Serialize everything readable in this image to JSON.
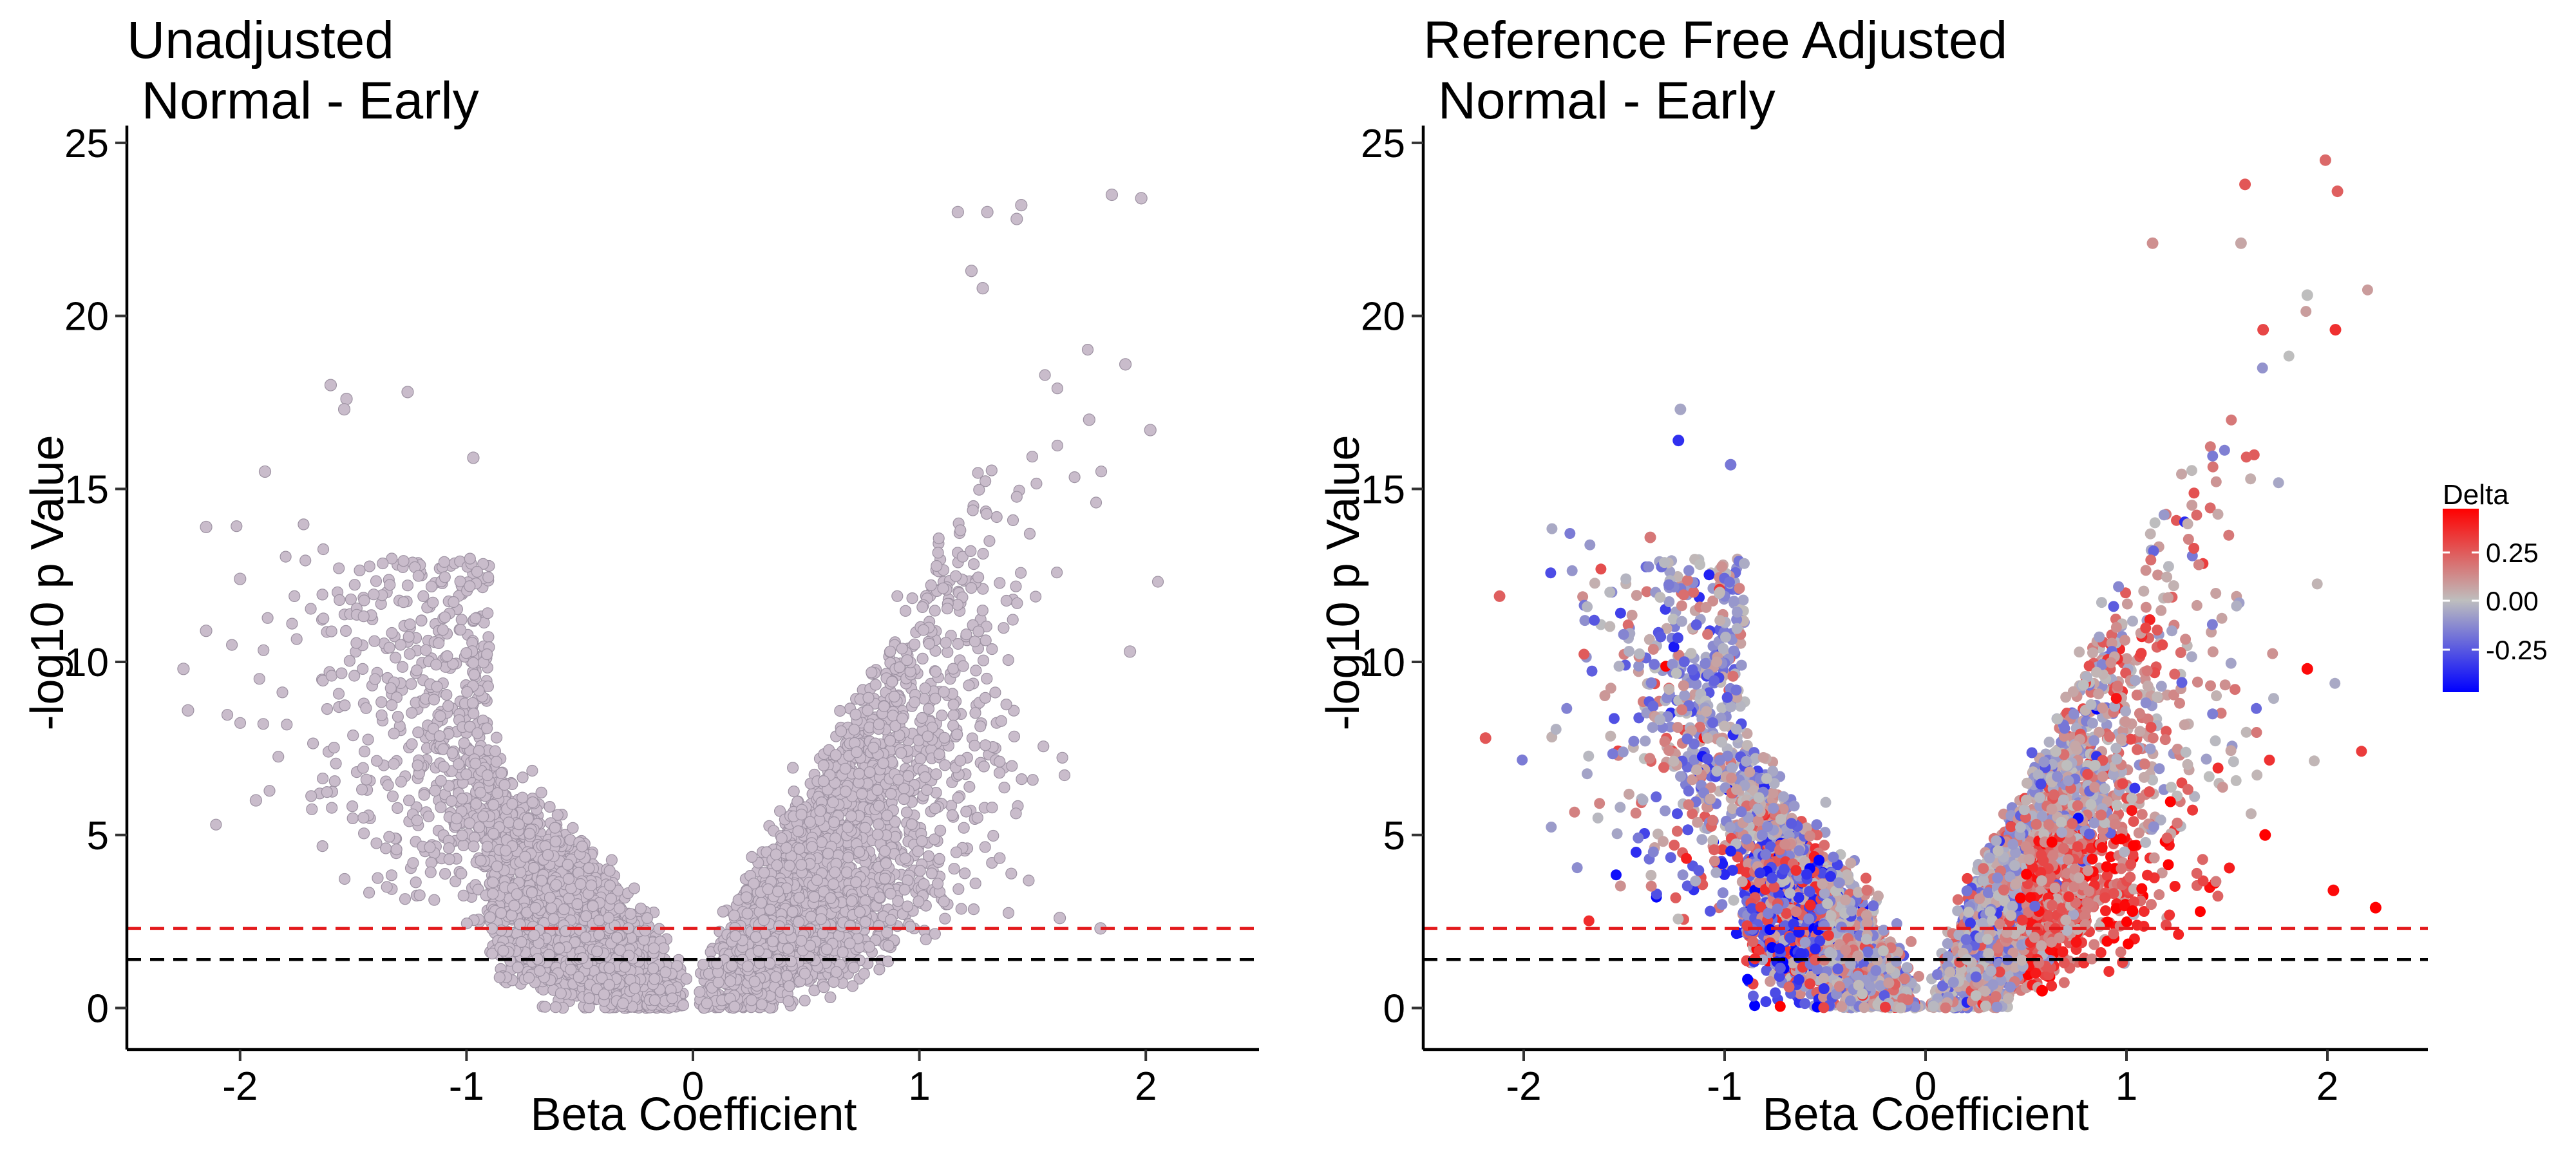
{
  "figure": {
    "panels": [
      {
        "title_line1": "Unadjusted",
        "title_line2": " Normal - Early",
        "xlabel": "Beta Coefficient",
        "ylabel": "-log10 p Value"
      },
      {
        "title_line1": "Reference Free Adjusted",
        "title_line2": " Normal - Early",
        "xlabel": "Beta Coefficient",
        "ylabel": "-log10 p Value"
      }
    ],
    "legend": {
      "title": "Delta",
      "labels": [
        "0.25",
        "0.00",
        "-0.25"
      ]
    }
  },
  "chart_data": [
    {
      "type": "scatter",
      "title": "Unadjusted\n Normal - Early",
      "xlabel": "Beta Coefficient",
      "ylabel": "-log10 p Value",
      "xlim": [
        -2.5,
        2.5
      ],
      "ylim": [
        -1.2,
        25.5
      ],
      "x_ticks": [
        -2,
        -1,
        0,
        1,
        2
      ],
      "y_ticks": [
        0,
        5,
        10,
        15,
        20,
        25
      ],
      "grid": false,
      "point_color": "#C9BCCB",
      "point_stroke": "#9E93A3",
      "hlines": [
        {
          "y": 2.3,
          "color": "#E31A1C",
          "style": "dashed"
        },
        {
          "y": 1.4,
          "color": "#000000",
          "style": "dashed"
        }
      ],
      "highlight_points": [
        {
          "x": 1.85,
          "y": 23.5
        },
        {
          "x": 1.98,
          "y": 23.4
        },
        {
          "x": 1.45,
          "y": 23.2
        },
        {
          "x": 1.3,
          "y": 23.0
        },
        {
          "x": 1.43,
          "y": 22.8
        },
        {
          "x": 1.17,
          "y": 23.0
        },
        {
          "x": 1.23,
          "y": 21.3
        },
        {
          "x": 1.28,
          "y": 20.8
        },
        {
          "x": 1.91,
          "y": 18.6
        },
        {
          "x": 2.02,
          "y": 16.7
        },
        {
          "x": 1.75,
          "y": 17.0
        },
        {
          "x": -1.6,
          "y": 18.0
        },
        {
          "x": -1.53,
          "y": 17.6
        },
        {
          "x": -1.54,
          "y": 17.3
        },
        {
          "x": -1.26,
          "y": 17.8
        },
        {
          "x": -0.97,
          "y": 15.9
        },
        {
          "x": -1.89,
          "y": 15.5
        },
        {
          "x": -2.15,
          "y": 13.9
        },
        {
          "x": -2.0,
          "y": 12.4
        },
        {
          "x": -2.15,
          "y": 10.9
        },
        {
          "x": -2.25,
          "y": 9.8
        },
        {
          "x": -2.23,
          "y": 8.6
        },
        {
          "x": -1.93,
          "y": 6.0
        },
        {
          "x": 1.93,
          "y": 10.3
        },
        {
          "x": 1.8,
          "y": 2.3
        },
        {
          "x": 1.62,
          "y": 2.6
        }
      ]
    },
    {
      "type": "scatter",
      "title": "Reference Free Adjusted\n Normal - Early",
      "xlabel": "Beta Coefficient",
      "ylabel": "-log10 p Value",
      "xlim": [
        -2.5,
        2.5
      ],
      "ylim": [
        -1.2,
        25.5
      ],
      "x_ticks": [
        -2,
        -1,
        0,
        1,
        2
      ],
      "y_ticks": [
        0,
        5,
        10,
        15,
        20,
        25
      ],
      "grid": false,
      "color_scale": {
        "variable": "Delta",
        "low": "#0000FF",
        "mid": "#BEBEBE",
        "high": "#FF0000",
        "domain": [
          -0.4,
          0.4
        ],
        "ticks": [
          -0.25,
          0.0,
          0.25
        ]
      },
      "hlines": [
        {
          "y": 2.3,
          "color": "#E31A1C",
          "style": "dashed"
        },
        {
          "y": 1.4,
          "color": "#000000",
          "style": "dashed"
        }
      ],
      "highlight_points": [
        {
          "x": 1.99,
          "y": 24.5,
          "delta": 0.18
        },
        {
          "x": 2.05,
          "y": 23.6,
          "delta": 0.2
        },
        {
          "x": 1.59,
          "y": 23.8,
          "delta": 0.22
        },
        {
          "x": 1.57,
          "y": 22.1,
          "delta": 0.05
        },
        {
          "x": 1.13,
          "y": 22.1,
          "delta": 0.1
        },
        {
          "x": 2.04,
          "y": 19.6,
          "delta": 0.3
        },
        {
          "x": 1.9,
          "y": 20.6,
          "delta": 0.0
        },
        {
          "x": 1.68,
          "y": 19.6,
          "delta": 0.25
        },
        {
          "x": 2.03,
          "y": 3.4,
          "delta": 0.38
        },
        {
          "x": 2.24,
          "y": 2.9,
          "delta": 0.4
        },
        {
          "x": 1.9,
          "y": 9.8,
          "delta": 0.38
        },
        {
          "x": 1.69,
          "y": 5.0,
          "delta": 0.4
        },
        {
          "x": -1.22,
          "y": 17.3,
          "delta": -0.05
        },
        {
          "x": -1.23,
          "y": 16.4,
          "delta": -0.3
        },
        {
          "x": -0.97,
          "y": 15.7,
          "delta": -0.15
        },
        {
          "x": -1.37,
          "y": 13.6,
          "delta": 0.15
        },
        {
          "x": -2.12,
          "y": 11.9,
          "delta": 0.2
        },
        {
          "x": -2.19,
          "y": 7.8,
          "delta": 0.22
        },
        {
          "x": -0.63,
          "y": 2.2,
          "delta": -0.35
        },
        {
          "x": 0.58,
          "y": 0.5,
          "delta": 0.4
        },
        {
          "x": 1.03,
          "y": 2.8,
          "delta": 0.42
        }
      ]
    }
  ]
}
